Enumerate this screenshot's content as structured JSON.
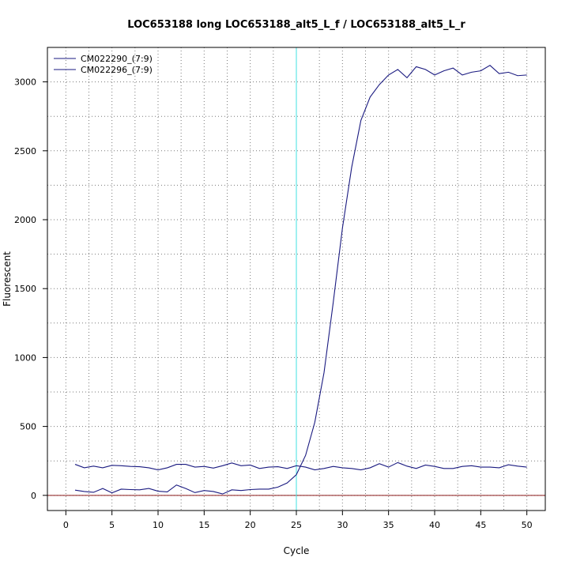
{
  "chart_data": {
    "type": "line",
    "title": "LOC653188 long LOC653188_alt5_L_f / LOC653188_alt5_L_r",
    "xlabel": "Cycle",
    "ylabel": "Fluorescent",
    "xlim": [
      -2,
      52
    ],
    "ylim": [
      -110,
      3250
    ],
    "x_ticks": [
      0,
      5,
      10,
      15,
      20,
      25,
      30,
      35,
      40,
      45,
      50
    ],
    "y_ticks": [
      0,
      500,
      1000,
      1500,
      2000,
      2500,
      3000
    ],
    "grid": true,
    "grid_style": "dotted",
    "legend_position": "top-left",
    "threshold_cycle": 25,
    "threshold_color": "#40e0e0",
    "baseline_value": 0,
    "baseline_color": "#8b1a1a",
    "x": [
      1,
      2,
      3,
      4,
      5,
      6,
      7,
      8,
      9,
      10,
      11,
      12,
      13,
      14,
      15,
      16,
      17,
      18,
      19,
      20,
      21,
      22,
      23,
      24,
      25,
      26,
      27,
      28,
      29,
      30,
      31,
      32,
      33,
      34,
      35,
      36,
      37,
      38,
      39,
      40,
      41,
      42,
      43,
      44,
      45,
      46,
      47,
      48,
      49,
      50
    ],
    "series": [
      {
        "name": "CM022290_(7:9)",
        "color": "#1a1a80",
        "values": [
          225,
          200,
          212,
          200,
          218,
          215,
          210,
          208,
          200,
          185,
          200,
          225,
          225,
          205,
          210,
          198,
          215,
          235,
          215,
          220,
          195,
          205,
          208,
          195,
          215,
          205,
          185,
          195,
          210,
          200,
          195,
          185,
          200,
          230,
          205,
          238,
          212,
          195,
          220,
          210,
          195,
          195,
          210,
          215,
          205,
          205,
          200,
          222,
          212,
          205
        ]
      },
      {
        "name": "CM022296_(7:9)",
        "color": "#1a1a80",
        "values": [
          38,
          28,
          22,
          50,
          18,
          45,
          42,
          40,
          50,
          30,
          25,
          75,
          50,
          20,
          35,
          28,
          10,
          40,
          35,
          42,
          45,
          45,
          60,
          90,
          150,
          290,
          530,
          890,
          1400,
          1940,
          2380,
          2720,
          2890,
          2980,
          3050,
          3090,
          3030,
          3110,
          3090,
          3050,
          3080,
          3100,
          3050,
          3070,
          3080,
          3120,
          3060,
          3070,
          3045,
          3050
        ]
      }
    ]
  }
}
